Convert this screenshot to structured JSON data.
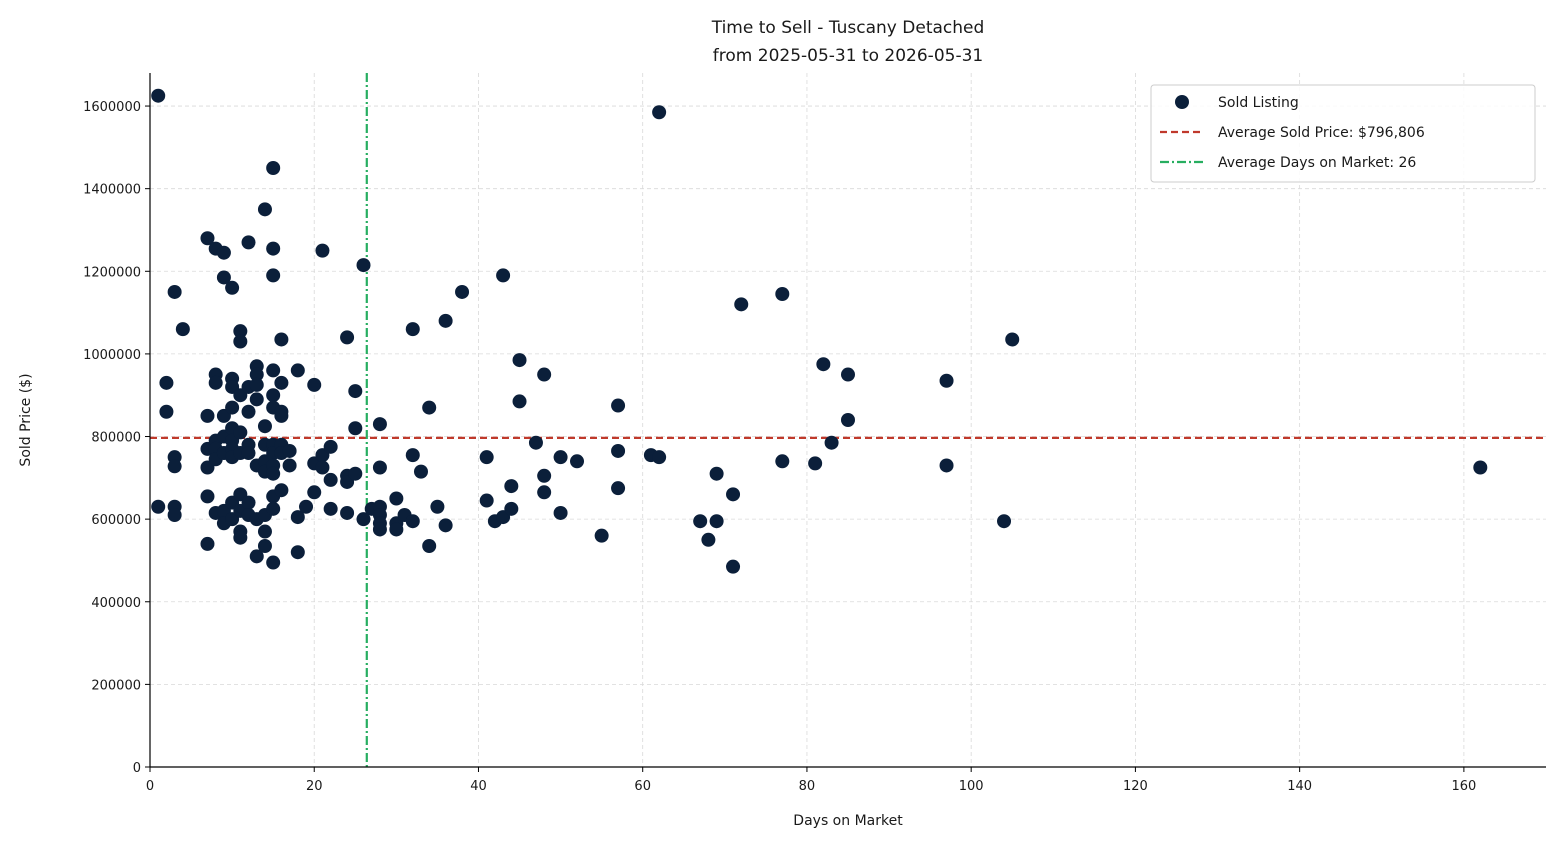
{
  "chart_data": {
    "type": "scatter",
    "title": "Time to Sell - Tuscany Detached",
    "subtitle": "from 2025-05-31 to 2026-05-31",
    "xlabel": "Days on Market",
    "ylabel": "Sold Price ($)",
    "xlim": [
      0,
      170
    ],
    "ylim": [
      0,
      1680000
    ],
    "xticks": [
      0,
      20,
      40,
      60,
      80,
      100,
      120,
      140,
      160
    ],
    "yticks": [
      0,
      200000,
      400000,
      600000,
      800000,
      1000000,
      1200000,
      1400000,
      1600000
    ],
    "grid": true,
    "legend_position": "top-right",
    "colors": {
      "points": "#0b1f3a",
      "avg_price_line": "#c0392b",
      "avg_days_line": "#27ae60"
    },
    "legend": {
      "points": "Sold Listing",
      "avg_price": "Average Sold Price: $796,806",
      "avg_days": "Average Days on Market: 26"
    },
    "avg_sold_price": 796806,
    "avg_days_on_market": 26.4,
    "series": [
      {
        "name": "Sold Listing",
        "points": [
          [
            1,
            1625000
          ],
          [
            1,
            630000
          ],
          [
            2,
            930000
          ],
          [
            2,
            860000
          ],
          [
            3,
            1150000
          ],
          [
            3,
            750000
          ],
          [
            3,
            728000
          ],
          [
            3,
            630000
          ],
          [
            3,
            610000
          ],
          [
            4,
            1060000
          ],
          [
            7,
            1280000
          ],
          [
            7,
            850000
          ],
          [
            7,
            770000
          ],
          [
            7,
            725000
          ],
          [
            7,
            655000
          ],
          [
            7,
            540000
          ],
          [
            8,
            1255000
          ],
          [
            8,
            950000
          ],
          [
            8,
            930000
          ],
          [
            8,
            790000
          ],
          [
            8,
            770000
          ],
          [
            8,
            745000
          ],
          [
            8,
            615000
          ],
          [
            9,
            1245000
          ],
          [
            9,
            1185000
          ],
          [
            9,
            850000
          ],
          [
            9,
            800000
          ],
          [
            9,
            760000
          ],
          [
            9,
            620000
          ],
          [
            9,
            590000
          ],
          [
            10,
            1160000
          ],
          [
            10,
            940000
          ],
          [
            10,
            920000
          ],
          [
            10,
            870000
          ],
          [
            10,
            820000
          ],
          [
            10,
            790000
          ],
          [
            10,
            770000
          ],
          [
            10,
            750000
          ],
          [
            10,
            640000
          ],
          [
            10,
            600000
          ],
          [
            11,
            1055000
          ],
          [
            11,
            1030000
          ],
          [
            11,
            900000
          ],
          [
            11,
            810000
          ],
          [
            11,
            760000
          ],
          [
            11,
            660000
          ],
          [
            11,
            620000
          ],
          [
            11,
            570000
          ],
          [
            11,
            555000
          ],
          [
            12,
            1270000
          ],
          [
            12,
            920000
          ],
          [
            12,
            860000
          ],
          [
            12,
            780000
          ],
          [
            12,
            760000
          ],
          [
            12,
            640000
          ],
          [
            12,
            610000
          ],
          [
            13,
            970000
          ],
          [
            13,
            950000
          ],
          [
            13,
            925000
          ],
          [
            13,
            890000
          ],
          [
            13,
            730000
          ],
          [
            13,
            600000
          ],
          [
            13,
            510000
          ],
          [
            14,
            1350000
          ],
          [
            14,
            825000
          ],
          [
            14,
            780000
          ],
          [
            14,
            740000
          ],
          [
            14,
            715000
          ],
          [
            14,
            610000
          ],
          [
            14,
            570000
          ],
          [
            14,
            535000
          ],
          [
            15,
            1450000
          ],
          [
            15,
            1255000
          ],
          [
            15,
            1190000
          ],
          [
            15,
            960000
          ],
          [
            15,
            900000
          ],
          [
            15,
            870000
          ],
          [
            15,
            780000
          ],
          [
            15,
            760000
          ],
          [
            15,
            730000
          ],
          [
            15,
            710000
          ],
          [
            15,
            655000
          ],
          [
            15,
            625000
          ],
          [
            15,
            495000
          ],
          [
            16,
            1035000
          ],
          [
            16,
            930000
          ],
          [
            16,
            860000
          ],
          [
            16,
            850000
          ],
          [
            16,
            780000
          ],
          [
            16,
            760000
          ],
          [
            16,
            670000
          ],
          [
            17,
            765000
          ],
          [
            17,
            730000
          ],
          [
            18,
            960000
          ],
          [
            18,
            605000
          ],
          [
            18,
            520000
          ],
          [
            19,
            630000
          ],
          [
            20,
            925000
          ],
          [
            20,
            735000
          ],
          [
            20,
            665000
          ],
          [
            21,
            1250000
          ],
          [
            21,
            755000
          ],
          [
            21,
            725000
          ],
          [
            22,
            775000
          ],
          [
            22,
            695000
          ],
          [
            22,
            625000
          ],
          [
            24,
            1040000
          ],
          [
            24,
            705000
          ],
          [
            24,
            690000
          ],
          [
            24,
            615000
          ],
          [
            25,
            910000
          ],
          [
            25,
            820000
          ],
          [
            25,
            710000
          ],
          [
            26,
            1215000
          ],
          [
            26,
            600000
          ],
          [
            27,
            625000
          ],
          [
            28,
            830000
          ],
          [
            28,
            725000
          ],
          [
            28,
            630000
          ],
          [
            28,
            610000
          ],
          [
            28,
            590000
          ],
          [
            28,
            575000
          ],
          [
            30,
            650000
          ],
          [
            30,
            590000
          ],
          [
            30,
            575000
          ],
          [
            31,
            610000
          ],
          [
            32,
            1060000
          ],
          [
            32,
            755000
          ],
          [
            32,
            595000
          ],
          [
            33,
            715000
          ],
          [
            34,
            870000
          ],
          [
            34,
            535000
          ],
          [
            35,
            630000
          ],
          [
            36,
            1080000
          ],
          [
            36,
            585000
          ],
          [
            38,
            1150000
          ],
          [
            41,
            750000
          ],
          [
            41,
            645000
          ],
          [
            42,
            595000
          ],
          [
            43,
            1190000
          ],
          [
            43,
            605000
          ],
          [
            44,
            680000
          ],
          [
            44,
            625000
          ],
          [
            45,
            985000
          ],
          [
            45,
            885000
          ],
          [
            47,
            785000
          ],
          [
            48,
            950000
          ],
          [
            48,
            705000
          ],
          [
            48,
            665000
          ],
          [
            50,
            750000
          ],
          [
            50,
            615000
          ],
          [
            52,
            740000
          ],
          [
            55,
            560000
          ],
          [
            57,
            875000
          ],
          [
            57,
            765000
          ],
          [
            57,
            675000
          ],
          [
            61,
            755000
          ],
          [
            62,
            1585000
          ],
          [
            62,
            750000
          ],
          [
            67,
            595000
          ],
          [
            68,
            550000
          ],
          [
            69,
            710000
          ],
          [
            69,
            595000
          ],
          [
            71,
            660000
          ],
          [
            71,
            485000
          ],
          [
            72,
            1120000
          ],
          [
            77,
            1145000
          ],
          [
            77,
            740000
          ],
          [
            81,
            735000
          ],
          [
            82,
            975000
          ],
          [
            83,
            785000
          ],
          [
            85,
            950000
          ],
          [
            85,
            840000
          ],
          [
            97,
            935000
          ],
          [
            97,
            730000
          ],
          [
            104,
            595000
          ],
          [
            105,
            1035000
          ],
          [
            162,
            725000
          ]
        ]
      }
    ]
  }
}
